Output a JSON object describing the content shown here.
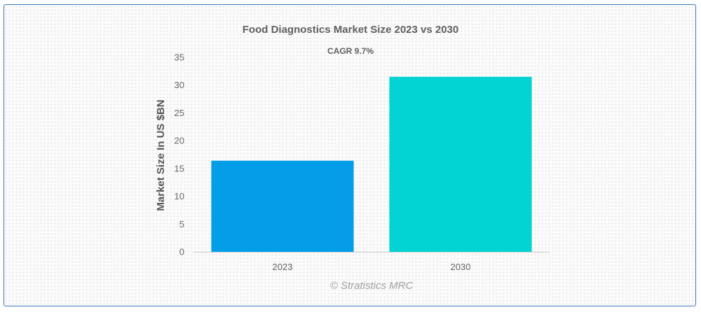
{
  "chart_data": {
    "type": "bar",
    "title": "Food Diagnostics Market Size 2023 vs 2030",
    "subtitle": "CAGR 9.7%",
    "categories": [
      "2023",
      "2030"
    ],
    "values": [
      16.4,
      31.5
    ],
    "colors": [
      "#039de8",
      "#02d3d3"
    ],
    "xlabel": "",
    "ylabel": "Market Size In US $BN",
    "ylim": [
      0,
      35
    ],
    "yticks": [
      "0",
      "5",
      "10",
      "15",
      "20",
      "25",
      "30",
      "35"
    ],
    "grid": false,
    "legend": "none"
  },
  "watermark": "© Stratistics MRC"
}
